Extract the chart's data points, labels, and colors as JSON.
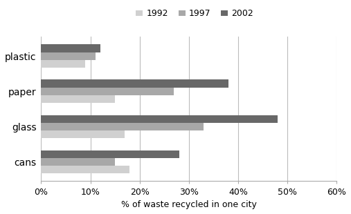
{
  "categories": [
    "plastic",
    "paper",
    "glass",
    "cans"
  ],
  "years": [
    "1992",
    "1997",
    "2002"
  ],
  "values": {
    "plastic": [
      9,
      11,
      12
    ],
    "paper": [
      15,
      27,
      38
    ],
    "glass": [
      17,
      33,
      48
    ],
    "cans": [
      18,
      15,
      28
    ]
  },
  "colors": [
    "#d0d0d0",
    "#a8a8a8",
    "#686868"
  ],
  "xlabel": "% of waste recycled in one city",
  "xlim": [
    0,
    60
  ],
  "xticks": [
    0,
    10,
    20,
    30,
    40,
    50,
    60
  ],
  "xtick_labels": [
    "0%",
    "10%",
    "20%",
    "30%",
    "40%",
    "50%",
    "60%"
  ],
  "legend_labels": [
    "1992",
    "1997",
    "2002"
  ],
  "bar_height": 0.22,
  "background_color": "#ffffff"
}
